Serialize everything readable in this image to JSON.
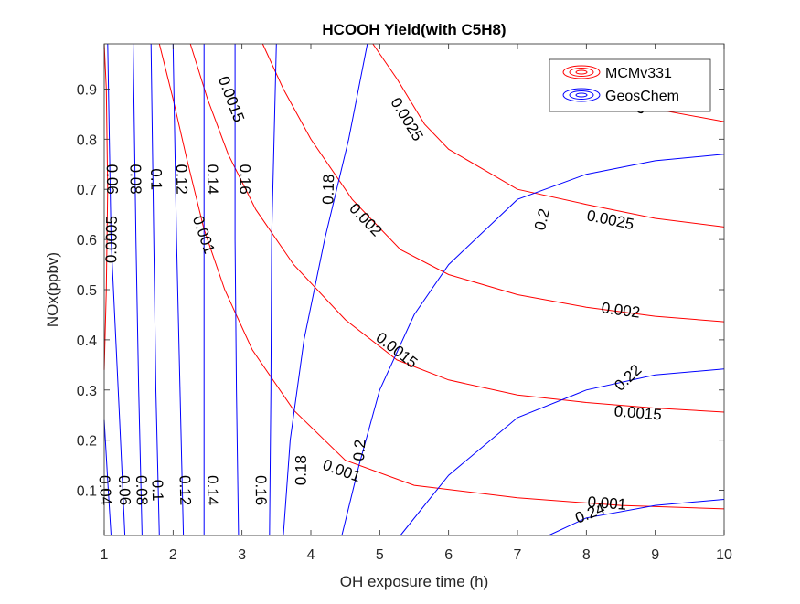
{
  "chart_data": {
    "type": "contour",
    "title": "HCOOH Yield(with C5H8)",
    "xlabel": "OH exposure time (h)",
    "ylabel": "NOx(ppbv)",
    "xlim": [
      1,
      10
    ],
    "ylim": [
      0.01,
      0.99
    ],
    "xticks": [
      "1",
      "2",
      "3",
      "4",
      "5",
      "6",
      "7",
      "8",
      "9",
      "10"
    ],
    "yticks": [
      "0.1",
      "0.2",
      "0.3",
      "0.4",
      "0.5",
      "0.6",
      "0.7",
      "0.8",
      "0.9"
    ],
    "grid": false,
    "legend": {
      "position": "top-right",
      "entries": [
        {
          "label": "MCMv331",
          "color": "#ff0000"
        },
        {
          "label": "GeosChem",
          "color": "#0000ff"
        }
      ]
    },
    "series": [
      {
        "name": "MCMv331",
        "color": "#ff0000",
        "levels": [
          {
            "label": "0.0005",
            "points": [
              [
                1.0,
                0.34
              ],
              [
                1.03,
                0.5
              ],
              [
                1.05,
                0.7
              ],
              [
                1.03,
                0.9
              ],
              [
                1.0,
                0.99
              ]
            ],
            "label_at": [
              1.1,
              0.6
            ]
          },
          {
            "label": "0.001",
            "points": [
              [
                1.8,
                0.99
              ],
              [
                2.0,
                0.88
              ],
              [
                2.2,
                0.76
              ],
              [
                2.45,
                0.62
              ],
              [
                2.75,
                0.5
              ],
              [
                3.15,
                0.38
              ],
              [
                3.75,
                0.26
              ],
              [
                4.5,
                0.16
              ],
              [
                5.5,
                0.11
              ],
              [
                7.0,
                0.085
              ],
              [
                8.5,
                0.07
              ],
              [
                10.0,
                0.063
              ]
            ],
            "label_at_list": [
              [
                2.45,
                0.61
              ],
              [
                4.45,
                0.14
              ],
              [
                8.3,
                0.075
              ]
            ]
          },
          {
            "label": "0.0015",
            "points": [
              [
                2.25,
                0.99
              ],
              [
                2.5,
                0.88
              ],
              [
                2.8,
                0.77
              ],
              [
                3.2,
                0.66
              ],
              [
                3.75,
                0.55
              ],
              [
                4.5,
                0.44
              ],
              [
                5.25,
                0.36
              ],
              [
                6.0,
                0.32
              ],
              [
                7.0,
                0.29
              ],
              [
                8.0,
                0.275
              ],
              [
                9.0,
                0.264
              ],
              [
                10.0,
                0.256
              ]
            ],
            "label_at_list": [
              [
                2.85,
                0.88
              ],
              [
                5.25,
                0.38
              ],
              [
                8.75,
                0.255
              ]
            ]
          },
          {
            "label": "0.002",
            "points": [
              [
                3.3,
                0.99
              ],
              [
                3.6,
                0.9
              ],
              [
                4.0,
                0.8
              ],
              [
                4.6,
                0.68
              ],
              [
                5.3,
                0.58
              ],
              [
                6.0,
                0.53
              ],
              [
                7.0,
                0.49
              ],
              [
                8.0,
                0.465
              ],
              [
                9.0,
                0.447
              ],
              [
                10.0,
                0.436
              ]
            ],
            "label_at_list": [
              [
                4.8,
                0.64
              ],
              [
                8.5,
                0.46
              ]
            ]
          },
          {
            "label": "0.0025",
            "points": [
              [
                4.9,
                0.99
              ],
              [
                5.25,
                0.92
              ],
              [
                5.65,
                0.83
              ],
              [
                6.0,
                0.78
              ],
              [
                6.5,
                0.74
              ],
              [
                7.0,
                0.7
              ],
              [
                8.0,
                0.67
              ],
              [
                9.0,
                0.642
              ],
              [
                10.0,
                0.625
              ]
            ],
            "label_at_list": [
              [
                5.4,
                0.84
              ],
              [
                8.35,
                0.64
              ]
            ]
          },
          {
            "label": "0.003",
            "points": [
              [
                8.6,
                0.885
              ],
              [
                9.0,
                0.86
              ],
              [
                10.0,
                0.835
              ]
            ],
            "label_at": [
              8.6,
              0.875
            ]
          }
        ]
      },
      {
        "name": "GeosChem",
        "color": "#0000ff",
        "levels": [
          {
            "label": "0.04",
            "points": [
              [
                1.0,
                0.24
              ],
              [
                1.05,
                0.12
              ],
              [
                1.1,
                0.01
              ]
            ],
            "label_at": [
              1.02,
              0.1
            ]
          },
          {
            "label": "0.06",
            "points": [
              [
                1.05,
                0.99
              ],
              [
                1.1,
                0.6
              ],
              [
                1.22,
                0.25
              ],
              [
                1.3,
                0.01
              ]
            ],
            "label_at_list": [
              [
                1.12,
                0.72
              ],
              [
                1.3,
                0.1
              ]
            ]
          },
          {
            "label": "0.08",
            "points": [
              [
                1.42,
                0.99
              ],
              [
                1.46,
                0.6
              ],
              [
                1.5,
                0.3
              ],
              [
                1.55,
                0.01
              ]
            ],
            "label_at_list": [
              [
                1.46,
                0.72
              ],
              [
                1.55,
                0.1
              ]
            ]
          },
          {
            "label": "0.1",
            "points": [
              [
                1.68,
                0.99
              ],
              [
                1.72,
                0.6
              ],
              [
                1.75,
                0.3
              ],
              [
                1.8,
                0.01
              ]
            ],
            "label_at_list": [
              [
                1.76,
                0.72
              ],
              [
                1.78,
                0.1
              ]
            ]
          },
          {
            "label": "0.12",
            "points": [
              [
                2.0,
                0.99
              ],
              [
                2.05,
                0.6
              ],
              [
                2.1,
                0.3
              ],
              [
                2.15,
                0.01
              ]
            ],
            "label_at_list": [
              [
                2.13,
                0.72
              ],
              [
                2.18,
                0.1
              ]
            ]
          },
          {
            "label": "0.14",
            "points": [
              [
                2.45,
                0.99
              ],
              [
                2.45,
                0.6
              ],
              [
                2.45,
                0.3
              ],
              [
                2.45,
                0.01
              ]
            ],
            "label_at_list": [
              [
                2.58,
                0.72
              ],
              [
                2.58,
                0.1
              ]
            ]
          },
          {
            "label": "0.16",
            "points": [
              [
                2.9,
                0.99
              ],
              [
                2.9,
                0.6
              ],
              [
                2.92,
                0.3
              ],
              [
                2.95,
                0.01
              ]
            ],
            "label_at_list": [
              [
                3.05,
                0.72
              ],
              [
                3.28,
                0.1
              ]
            ]
          },
          {
            "label": "0.18",
            "points": [
              [
                3.5,
                0.99
              ],
              [
                3.43,
                0.6
              ],
              [
                3.42,
                0.3
              ],
              [
                3.4,
                0.01
              ]
            ],
            "label_at_list": [
              [
                4.25,
                0.7
              ],
              [
                3.85,
                0.14
              ]
            ]
          },
          {
            "label": "0.2",
            "points": [
              [
                4.82,
                0.99
              ],
              [
                4.55,
                0.8
              ],
              [
                4.2,
                0.6
              ],
              [
                3.9,
                0.4
              ],
              [
                3.7,
                0.2
              ],
              [
                3.6,
                0.01
              ]
            ],
            "label_at_list": [
              [
                7.35,
                0.64
              ],
              [
                4.7,
                0.18
              ]
            ]
          },
          {
            "label": "0.22",
            "points": [
              [
                4.45,
                0.01
              ],
              [
                4.7,
                0.15
              ],
              [
                5.0,
                0.3
              ],
              [
                5.5,
                0.45
              ],
              [
                6.0,
                0.55
              ],
              [
                7.0,
                0.68
              ],
              [
                8.0,
                0.73
              ],
              [
                9.0,
                0.757
              ],
              [
                10.0,
                0.77
              ]
            ],
            "label_at": [
              8.6,
              0.325
            ]
          },
          {
            "label": "0.24",
            "points": [
              [
                5.3,
                0.01
              ],
              [
                6.0,
                0.13
              ],
              [
                7.0,
                0.245
              ],
              [
                8.0,
                0.3
              ],
              [
                9.0,
                0.33
              ],
              [
                10.0,
                0.342
              ]
            ],
            "label_at": [
              8.05,
              0.055
            ]
          },
          {
            "label": "",
            "points": [
              [
                7.45,
                0.01
              ],
              [
                8.0,
                0.045
              ],
              [
                9.0,
                0.07
              ],
              [
                10.0,
                0.082
              ]
            ]
          }
        ]
      }
    ]
  }
}
